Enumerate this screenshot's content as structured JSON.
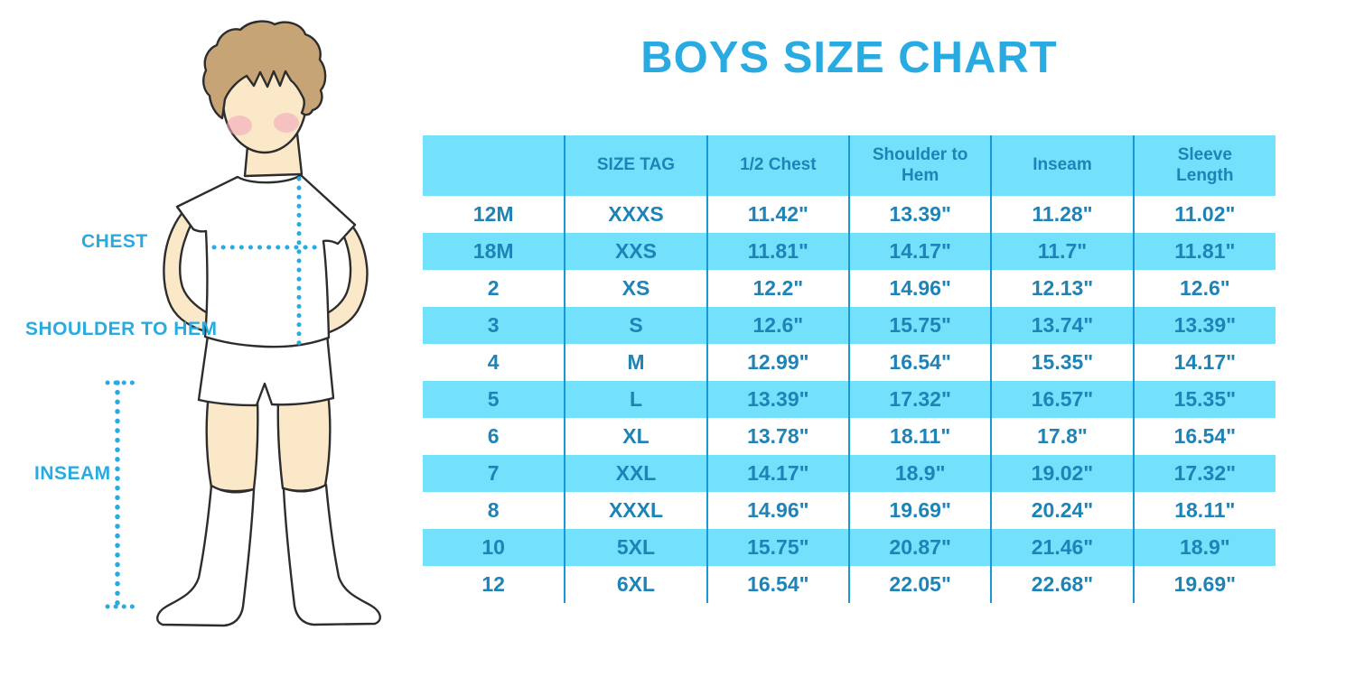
{
  "title": "BOYS SIZE CHART",
  "colors": {
    "accent_blue": "#29ABE2",
    "band_blue": "#73E1FC",
    "table_text_blue": "#1E83B7",
    "divider_blue": "#1899D5",
    "skin": "#FBE8C8",
    "hair": "#C7A476",
    "cheek": "#F2A8BC",
    "outline": "#2D2D2D"
  },
  "figure": {
    "description": "outlined illustration of a boy in white t-shirt, shorts and knee socks with dotted measurement guides",
    "measure_labels": {
      "chest": "CHEST",
      "shoulder_to_hem": "SHOULDER TO HEM",
      "inseam": "INSEAM"
    }
  },
  "chart_data": {
    "type": "table",
    "title": "BOYS SIZE CHART",
    "columns": [
      "",
      "SIZE TAG",
      "1/2 Chest",
      "Shoulder to Hem",
      "Inseam",
      "Sleeve Length"
    ],
    "rows": [
      [
        "12M",
        "XXXS",
        "11.42\"",
        "13.39\"",
        "11.28\"",
        "11.02\""
      ],
      [
        "18M",
        "XXS",
        "11.81\"",
        "14.17\"",
        "11.7\"",
        "11.81\""
      ],
      [
        "2",
        "XS",
        "12.2\"",
        "14.96\"",
        "12.13\"",
        "12.6\""
      ],
      [
        "3",
        "S",
        "12.6\"",
        "15.75\"",
        "13.74\"",
        "13.39\""
      ],
      [
        "4",
        "M",
        "12.99\"",
        "16.54\"",
        "15.35\"",
        "14.17\""
      ],
      [
        "5",
        "L",
        "13.39\"",
        "17.32\"",
        "16.57\"",
        "15.35\""
      ],
      [
        "6",
        "XL",
        "13.78\"",
        "18.11\"",
        "17.8\"",
        "16.54\""
      ],
      [
        "7",
        "XXL",
        "14.17\"",
        "18.9\"",
        "19.02\"",
        "17.32\""
      ],
      [
        "8",
        "XXXL",
        "14.96\"",
        "19.69\"",
        "20.24\"",
        "18.11\""
      ],
      [
        "10",
        "5XL",
        "15.75\"",
        "20.87\"",
        "21.46\"",
        "18.9\""
      ],
      [
        "12",
        "6XL",
        "16.54\"",
        "22.05\"",
        "22.68\"",
        "19.69\""
      ]
    ],
    "units": "inches",
    "row_striping": "white / light-blue alternating, header light-blue"
  }
}
